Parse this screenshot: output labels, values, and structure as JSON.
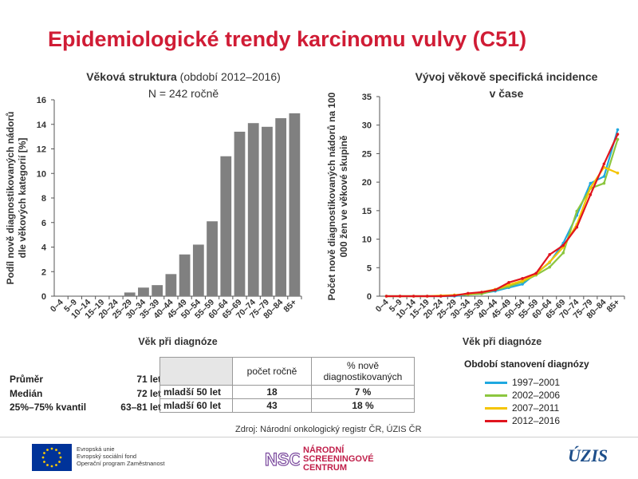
{
  "title": "Epidemiologické trendy karcinomu vulvy (C51)",
  "left_chart": {
    "title_bold": "Věková struktura",
    "title_rest": " (období 2012–2016)",
    "subtitle": "N = 242 ročně"
  },
  "right_chart": {
    "title_line1": "Vývoj věkově specifická incidence",
    "title_line2": "v čase"
  },
  "chart_data": [
    {
      "type": "bar",
      "title": "Věková struktura (období 2012–2016)",
      "subtitle": "N = 242 ročně",
      "categories": [
        "0–4",
        "5–9",
        "10–14",
        "15–19",
        "20–24",
        "25–29",
        "30–34",
        "35–39",
        "40–44",
        "45–49",
        "50–54",
        "55–59",
        "60–64",
        "65–69",
        "70–74",
        "75–79",
        "80–84",
        "85+"
      ],
      "values": [
        0,
        0,
        0,
        0,
        0,
        0.3,
        0.7,
        0.9,
        1.8,
        3.4,
        4.2,
        6.1,
        11.4,
        13.4,
        14.1,
        13.8,
        14.5,
        14.9
      ],
      "xlabel": "Věk při diagnóze",
      "ylabel": "Podíl nově diagnostikovaných nádorů dle věkových kategorií [%]",
      "ylim": [
        0,
        16
      ],
      "yticks": [
        0,
        2,
        4,
        6,
        8,
        10,
        12,
        14,
        16
      ],
      "color": "#808080"
    },
    {
      "type": "line",
      "title": "Vývoj věkově specifická incidence v čase",
      "categories": [
        "0–4",
        "5–9",
        "10–14",
        "15–19",
        "20–24",
        "25–29",
        "30–34",
        "35–39",
        "40–44",
        "45–49",
        "50–54",
        "55–59",
        "60–64",
        "65–69",
        "70–74",
        "75–79",
        "80–84",
        "85+"
      ],
      "series": [
        {
          "name": "1997–2001",
          "color": "#1fa8e0",
          "values": [
            0,
            0,
            0,
            0,
            0,
            0,
            0.3,
            0.5,
            0.9,
            1.5,
            2.1,
            4.0,
            5.9,
            9.3,
            14.2,
            19.8,
            21.0,
            29.2
          ]
        },
        {
          "name": "2002–2006",
          "color": "#8cc63f",
          "values": [
            0,
            0,
            0,
            0,
            0,
            0.2,
            0.3,
            0.4,
            1.1,
            1.7,
            2.5,
            3.7,
            5.1,
            7.6,
            14.9,
            18.9,
            19.8,
            27.5
          ]
        },
        {
          "name": "2007–2011",
          "color": "#f5c400",
          "values": [
            0,
            0,
            0,
            0,
            0.1,
            0.2,
            0.4,
            0.7,
            1.2,
            2.0,
            2.7,
            3.9,
            6.0,
            8.6,
            12.6,
            19.0,
            22.6,
            21.6
          ]
        },
        {
          "name": "2012–2016",
          "color": "#e0141e",
          "values": [
            0,
            0,
            0,
            0,
            0,
            0.1,
            0.5,
            0.7,
            1.1,
            2.4,
            3.1,
            4.0,
            7.3,
            8.9,
            12.1,
            17.8,
            23.2,
            28.4
          ]
        }
      ],
      "xlabel": "Věk při diagnóze",
      "ylabel": "Počet nově diagnostikovaných nádorů na 100 000 žen ve věkové skupině",
      "ylim": [
        0,
        35
      ],
      "yticks": [
        0,
        5,
        10,
        15,
        20,
        25,
        30,
        35
      ]
    }
  ],
  "stats": [
    {
      "label": "Průměr",
      "value": "71 let"
    },
    {
      "label": "Medián",
      "value": "72 let"
    },
    {
      "label": "25%–75% kvantil",
      "value": "63–81 let"
    }
  ],
  "table": {
    "col1": "počet ročně",
    "col2": "% nově diagnostikovaných",
    "rows": [
      {
        "label": "mladší 50 let",
        "count": "18",
        "pct": "7 %"
      },
      {
        "label": "mladší 60 let",
        "count": "43",
        "pct": "18 %"
      }
    ]
  },
  "legend_title": "Období stanovení diagnózy",
  "source": "Zdroj: Národní onkologický registr ČR, ÚZIS ČR",
  "footer": {
    "eu_line1": "Evropská unie",
    "eu_line2": "Evropský sociální fond",
    "eu_line3": "Operační program Zaměstnanost",
    "nsc_line1": "NÁRODNÍ",
    "nsc_line2": "SCREENINGOVÉ",
    "nsc_line3": "CENTRUM",
    "nsc_mark": "NSC",
    "uzis": "ÚZIS"
  }
}
